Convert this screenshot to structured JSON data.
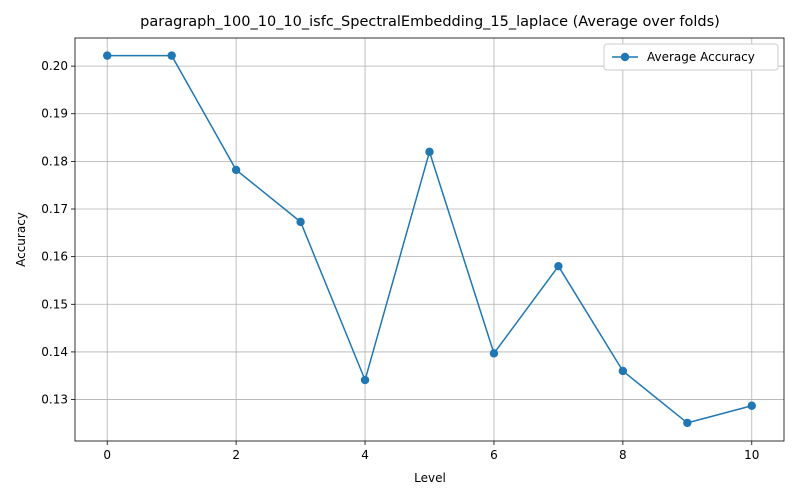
{
  "chart_data": {
    "type": "line",
    "title": "paragraph_100_10_10_isfc_SpectralEmbedding_15_laplace (Average over folds)",
    "xlabel": "Level",
    "ylabel": "Accuracy",
    "xlim": [
      -0.5,
      10.5
    ],
    "ylim": [
      0.1213,
      0.2059
    ],
    "xticks": [
      0,
      2,
      4,
      6,
      8,
      10
    ],
    "yticks": [
      0.13,
      0.14,
      0.15,
      0.16,
      0.17,
      0.18,
      0.19,
      0.2
    ],
    "xtick_labels": [
      "0",
      "2",
      "4",
      "6",
      "8",
      "10"
    ],
    "ytick_labels": [
      "0.13",
      "0.14",
      "0.15",
      "0.16",
      "0.17",
      "0.18",
      "0.19",
      "0.20"
    ],
    "grid": true,
    "legend_position": "top-right",
    "series": [
      {
        "name": "Average Accuracy",
        "color": "#1f77b4",
        "marker": "circle",
        "x": [
          0,
          1,
          2,
          3,
          4,
          5,
          6,
          7,
          8,
          9,
          10
        ],
        "y": [
          0.2022,
          0.2022,
          0.1782,
          0.1673,
          0.1341,
          0.182,
          0.1397,
          0.158,
          0.136,
          0.1251,
          0.1287
        ]
      }
    ]
  }
}
